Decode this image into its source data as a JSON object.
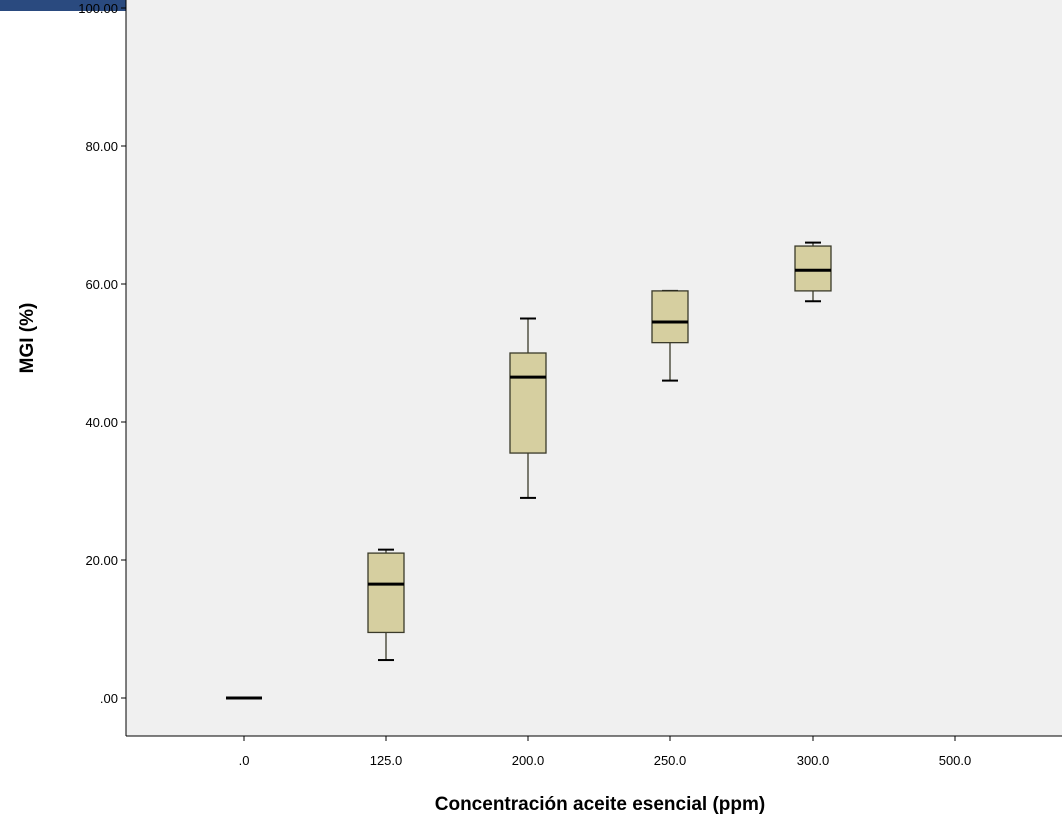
{
  "chart_data": {
    "type": "box",
    "xlabel": "Concentración aceite esencial (ppm)",
    "ylabel": "MGI (%)",
    "ylim": [
      -5,
      100
    ],
    "yticks": [
      ".00",
      "20.00",
      "40.00",
      "60.00",
      "80.00",
      "100.00"
    ],
    "ytick_values": [
      0,
      20,
      40,
      60,
      80,
      100
    ],
    "categories": [
      ".0",
      "125.0",
      "200.0",
      "250.0",
      "300.0",
      "500.0"
    ],
    "boxes": [
      {
        "category": ".0",
        "min": 0.0,
        "q1": 0.0,
        "median": 0.0,
        "q3": 0.0,
        "max": 0.0
      },
      {
        "category": "125.0",
        "min": 5.5,
        "q1": 9.5,
        "median": 16.5,
        "q3": 21.0,
        "max": 21.5
      },
      {
        "category": "200.0",
        "min": 29.0,
        "q1": 35.5,
        "median": 46.5,
        "q3": 50.0,
        "max": 55.0
      },
      {
        "category": "250.0",
        "min": 46.0,
        "q1": 51.5,
        "median": 54.5,
        "q3": 59.0,
        "max": 59.0
      },
      {
        "category": "300.0",
        "min": 57.5,
        "q1": 59.0,
        "median": 62.0,
        "q3": 65.5,
        "max": 66.0
      },
      {
        "category": "500.0",
        "min": null,
        "q1": null,
        "median": null,
        "q3": null,
        "max": null
      }
    ],
    "grid": false,
    "colors": {
      "plot_background": "#f0f0f0",
      "box_fill": "#d6cfa0",
      "box_stroke": "#3a3a2a",
      "header_bar": "#2a4a7f"
    }
  }
}
